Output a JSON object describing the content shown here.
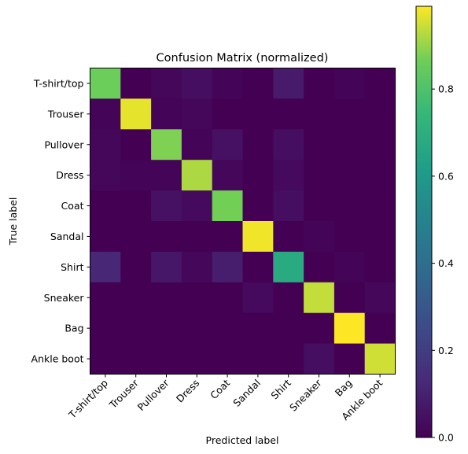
{
  "chart_data": {
    "type": "heatmap",
    "title": "Confusion Matrix (normalized)",
    "xlabel": "Predicted label",
    "ylabel": "True label",
    "x_categories": [
      "T-shirt/top",
      "Trouser",
      "Pullover",
      "Dress",
      "Coat",
      "Sandal",
      "Shirt",
      "Sneaker",
      "Bag",
      "Ankle boot"
    ],
    "y_categories": [
      "T-shirt/top",
      "Trouser",
      "Pullover",
      "Dress",
      "Coat",
      "Sandal",
      "Shirt",
      "Sneaker",
      "Bag",
      "Ankle boot"
    ],
    "values": [
      [
        0.86,
        0.0,
        0.02,
        0.04,
        0.01,
        0.0,
        0.08,
        0.0,
        0.01,
        0.0
      ],
      [
        0.01,
        0.97,
        0.01,
        0.02,
        0.0,
        0.0,
        0.0,
        0.0,
        0.0,
        0.0
      ],
      [
        0.02,
        0.0,
        0.88,
        0.01,
        0.05,
        0.0,
        0.04,
        0.0,
        0.0,
        0.0
      ],
      [
        0.02,
        0.01,
        0.01,
        0.92,
        0.02,
        0.0,
        0.03,
        0.0,
        0.0,
        0.0
      ],
      [
        0.0,
        0.0,
        0.05,
        0.03,
        0.87,
        0.0,
        0.04,
        0.0,
        0.0,
        0.0
      ],
      [
        0.0,
        0.0,
        0.0,
        0.0,
        0.0,
        0.98,
        0.0,
        0.01,
        0.0,
        0.0
      ],
      [
        0.12,
        0.0,
        0.07,
        0.02,
        0.09,
        0.0,
        0.68,
        0.0,
        0.01,
        0.0
      ],
      [
        0.0,
        0.0,
        0.0,
        0.0,
        0.0,
        0.03,
        0.0,
        0.94,
        0.0,
        0.02
      ],
      [
        0.0,
        0.0,
        0.0,
        0.0,
        0.0,
        0.0,
        0.0,
        0.0,
        0.99,
        0.0
      ],
      [
        0.0,
        0.0,
        0.0,
        0.0,
        0.0,
        0.0,
        0.0,
        0.04,
        0.0,
        0.95
      ]
    ],
    "colormap": "viridis",
    "colorbar": {
      "range": [
        0,
        0.99
      ],
      "ticks": [
        0.0,
        0.2,
        0.4,
        0.6,
        0.8
      ],
      "tick_labels": [
        "0.0",
        "0.2",
        "0.4",
        "0.6",
        "0.8"
      ]
    },
    "grid": false
  }
}
